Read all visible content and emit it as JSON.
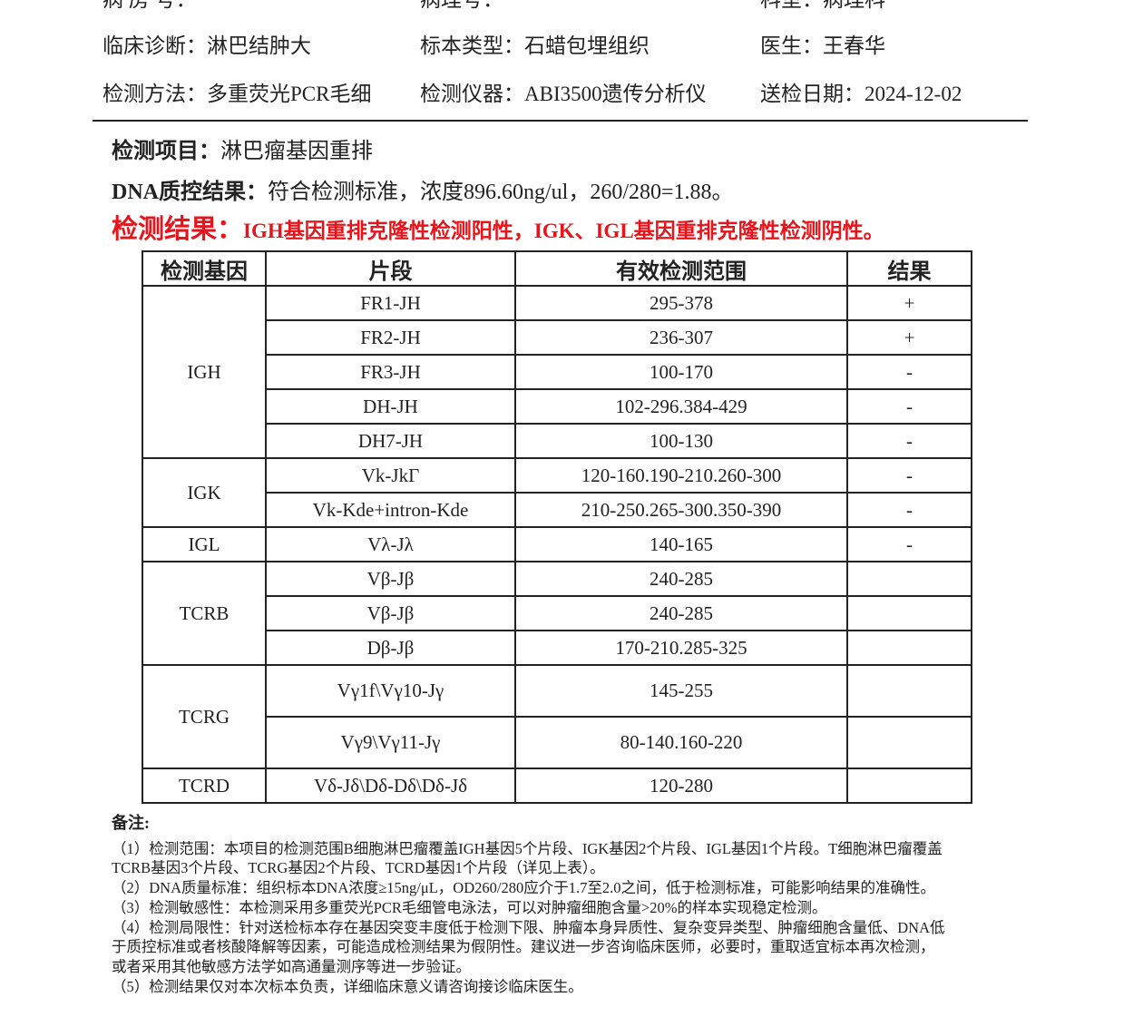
{
  "header": {
    "row0": [
      {
        "label": "病 房 号：",
        "value": ""
      },
      {
        "label": "病理号：",
        "value": ""
      },
      {
        "label": "科室：",
        "value": "病理科"
      }
    ],
    "row1": [
      {
        "label": "临床诊断：",
        "value": "淋巴结肿大"
      },
      {
        "label": "标本类型：",
        "value": "石蜡包埋组织"
      },
      {
        "label": "医生：",
        "value": "王春华"
      }
    ],
    "row2": [
      {
        "label": "检测方法：",
        "value": "多重荧光PCR毛细"
      },
      {
        "label": "检测仪器：",
        "value": "ABI3500遗传分析仪"
      },
      {
        "label": "送检日期：",
        "value": "2024-12-02"
      }
    ]
  },
  "project": {
    "label": "检测项目：",
    "value": "淋巴瘤基因重排"
  },
  "qc": {
    "label": "DNA质控结果：",
    "value": "符合检测标准，浓度896.60ng/ul，260/280=1.88。"
  },
  "result": {
    "label": "检测结果：",
    "value": "IGH基因重排克隆性检测阳性，IGK、IGL基因重排克隆性检测阴性。",
    "color": "#e8141c"
  },
  "table": {
    "headers": [
      "检测基因",
      "片段",
      "有效检测范围",
      "结果"
    ],
    "groups": [
      {
        "gene": "IGH",
        "rows": [
          [
            "FR1-JH",
            "295-378",
            "+"
          ],
          [
            "FR2-JH",
            "236-307",
            "+"
          ],
          [
            "FR3-JH",
            "100-170",
            "-"
          ],
          [
            "DH-JH",
            "102-296.384-429",
            "-"
          ],
          [
            "DH7-JH",
            "100-130",
            "-"
          ]
        ]
      },
      {
        "gene": "IGK",
        "rows": [
          [
            "Vk-JkΓ",
            "120-160.190-210.260-300",
            "-"
          ],
          [
            "Vk-Kde+intron-Kde",
            "210-250.265-300.350-390",
            "-"
          ]
        ]
      },
      {
        "gene": "IGL",
        "rows": [
          [
            "Vλ-Jλ",
            "140-165",
            "-"
          ]
        ]
      },
      {
        "gene": "TCRB",
        "rows": [
          [
            "Vβ-Jβ",
            "240-285",
            ""
          ],
          [
            "Vβ-Jβ",
            "240-285",
            ""
          ],
          [
            "Dβ-Jβ",
            "170-210.285-325",
            ""
          ]
        ]
      },
      {
        "gene": "TCRG",
        "rows": [
          [
            "Vγ1f\\Vγ10-Jγ",
            "145-255",
            ""
          ],
          [
            "Vγ9\\Vγ11-Jγ",
            "80-140.160-220",
            ""
          ]
        ]
      },
      {
        "gene": "TCRD",
        "rows": [
          [
            "Vδ-Jδ\\Dδ-Dδ\\Dδ-Jδ",
            "120-280",
            ""
          ]
        ]
      }
    ]
  },
  "notes": {
    "title": "备注:",
    "lines": [
      "（1）检测范围：本项目的检测范围B细胞淋巴瘤覆盖IGH基因5个片段、IGK基因2个片段、IGL基因1个片段。T细胞淋巴瘤覆盖",
      "TCRB基因3个片段、TCRG基因2个片段、TCRD基因1个片段（详见上表）。",
      "（2）DNA质量标准：组织标本DNA浓度≥15ng/μL，OD260/280应介于1.7至2.0之间，低于检测标准，可能影响结果的准确性。",
      "（3）检测敏感性：本检测采用多重荧光PCR毛细管电泳法，可以对肿瘤细胞含量>20%的样本实现稳定检测。",
      "（4）检测局限性：针对送检标本存在基因突变丰度低于检测下限、肿瘤本身异质性、复杂变异类型、肿瘤细胞含量低、DNA低",
      "于质控标准或者核酸降解等因素，可能造成检测结果为假阴性。建议进一步咨询临床医师，必要时，重取适宜标本再次检测，",
      "或者采用其他敏感方法学如高通量测序等进一步验证。",
      "（5）检测结果仅对本次标本负责，详细临床意义请咨询接诊临床医生。"
    ]
  }
}
